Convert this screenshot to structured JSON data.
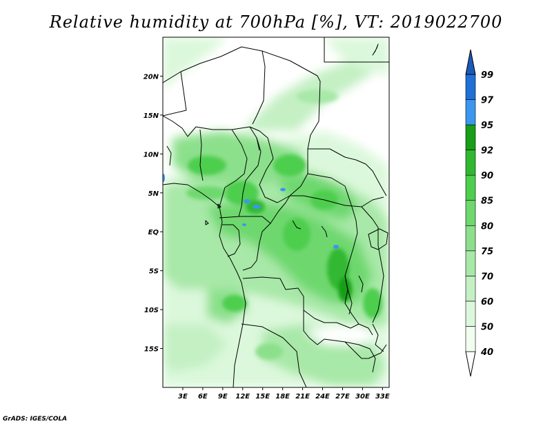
{
  "title": "Relative humidity at 700hPa [%], VT: 2019022700",
  "credit": "GrADS: IGES/COLA",
  "map": {
    "lon_range": [
      0,
      34
    ],
    "lat_range": [
      -20,
      25
    ],
    "lat_ticks": [
      {
        "value": 20,
        "label": "20N"
      },
      {
        "value": 15,
        "label": "15N"
      },
      {
        "value": 10,
        "label": "10N"
      },
      {
        "value": 5,
        "label": "5N"
      },
      {
        "value": 0,
        "label": "EQ"
      },
      {
        "value": -5,
        "label": "5S"
      },
      {
        "value": -10,
        "label": "10S"
      },
      {
        "value": -15,
        "label": "15S"
      }
    ],
    "lon_ticks": [
      {
        "value": 3,
        "label": "3E"
      },
      {
        "value": 6,
        "label": "6E"
      },
      {
        "value": 9,
        "label": "9E"
      },
      {
        "value": 12,
        "label": "12E"
      },
      {
        "value": 15,
        "label": "15E"
      },
      {
        "value": 18,
        "label": "18E"
      },
      {
        "value": 21,
        "label": "21E"
      },
      {
        "value": 24,
        "label": "24E"
      },
      {
        "value": 27,
        "label": "27E"
      },
      {
        "value": 30,
        "label": "30E"
      },
      {
        "value": 33,
        "label": "33E"
      }
    ]
  },
  "colorbar": {
    "levels": [
      {
        "label": "40",
        "color": "#f0fff0"
      },
      {
        "label": "50",
        "color": "#dcf8dc"
      },
      {
        "label": "60",
        "color": "#c4f0c4"
      },
      {
        "label": "70",
        "color": "#a8e8a8"
      },
      {
        "label": "75",
        "color": "#8ce08c"
      },
      {
        "label": "80",
        "color": "#6ed86e"
      },
      {
        "label": "85",
        "color": "#4ece4e"
      },
      {
        "label": "90",
        "color": "#30b830"
      },
      {
        "label": "92",
        "color": "#189e18"
      },
      {
        "label": "95",
        "color": "#3c96f0"
      },
      {
        "label": "97",
        "color": "#2070d8"
      },
      {
        "label": "99",
        "color": "#1a5ab8"
      }
    ],
    "below_color": "#ffffff"
  }
}
